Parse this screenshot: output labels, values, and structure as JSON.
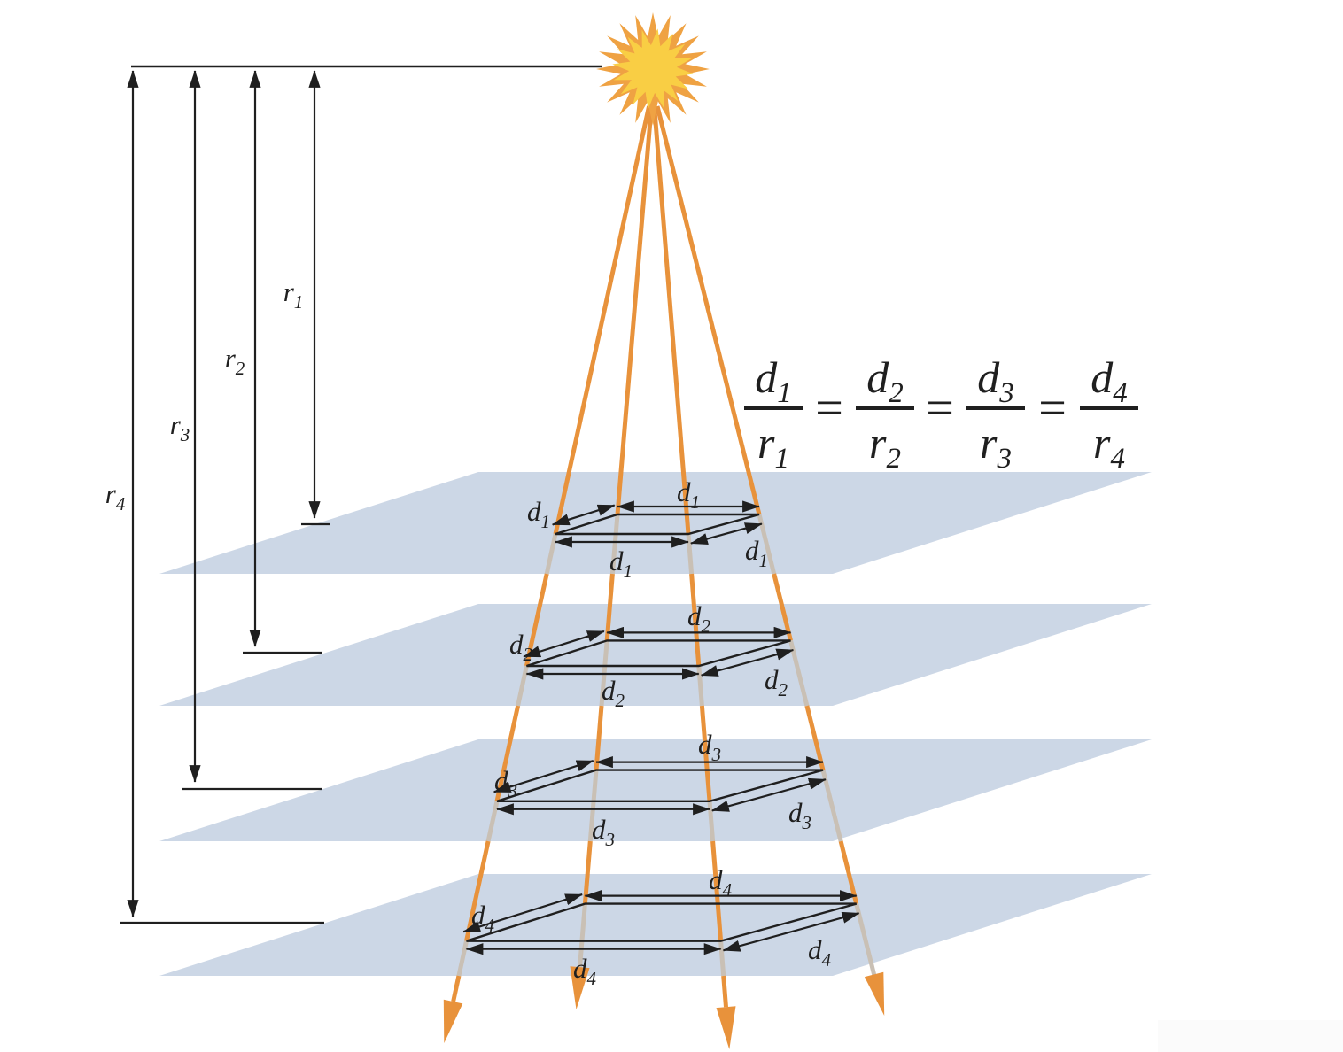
{
  "figure": {
    "description_tag": "inverse-square-law-light-spread-diagram"
  },
  "colors": {
    "ink": "#1f1f1f",
    "plane_fill": "#ccd7e6",
    "ray_orange": "#e8923b",
    "ray_behind_plane": "#c9c0b5",
    "sun_outer": "#efa243",
    "sun_inner": "#f9ce44",
    "background": "#ffffff",
    "corner_patch": "#fbfbfb"
  },
  "icons": {
    "sun": "starburst-sun"
  },
  "distances": [
    {
      "base": "r",
      "sub": "1"
    },
    {
      "base": "r",
      "sub": "2"
    },
    {
      "base": "r",
      "sub": "3"
    },
    {
      "base": "r",
      "sub": "4"
    }
  ],
  "squares": [
    {
      "base": "d",
      "sub": "1"
    },
    {
      "base": "d",
      "sub": "2"
    },
    {
      "base": "d",
      "sub": "3"
    },
    {
      "base": "d",
      "sub": "4"
    }
  ],
  "equation": {
    "equals": "=",
    "terms": [
      {
        "num": {
          "base": "d",
          "sub": "1"
        },
        "den": {
          "base": "r",
          "sub": "1"
        }
      },
      {
        "num": {
          "base": "d",
          "sub": "2"
        },
        "den": {
          "base": "r",
          "sub": "2"
        }
      },
      {
        "num": {
          "base": "d",
          "sub": "3"
        },
        "den": {
          "base": "r",
          "sub": "3"
        }
      },
      {
        "num": {
          "base": "d",
          "sub": "4"
        },
        "den": {
          "base": "r",
          "sub": "4"
        }
      }
    ]
  }
}
